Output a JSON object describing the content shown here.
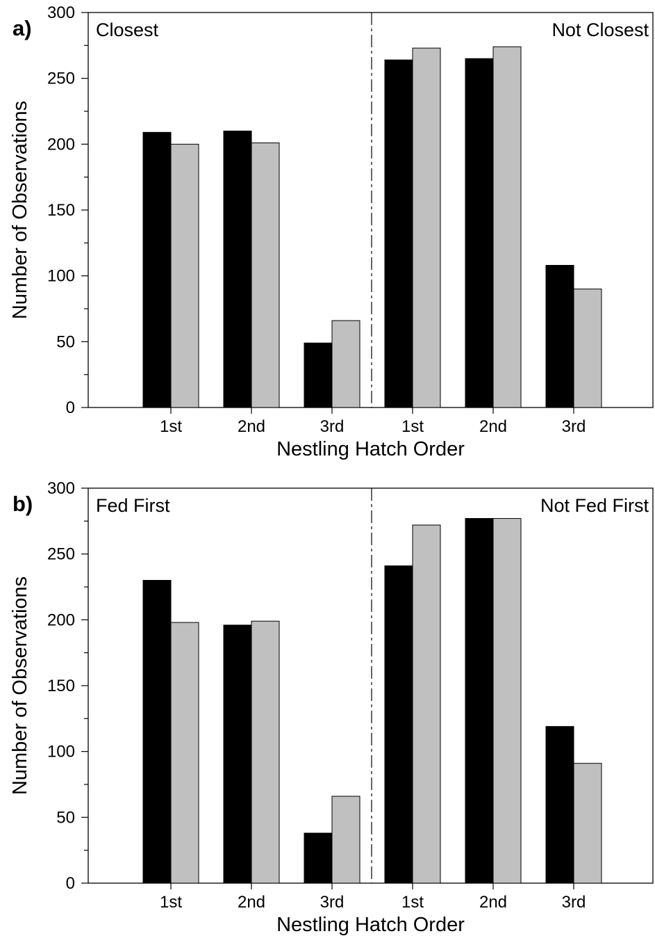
{
  "chart_data": [
    {
      "type": "bar",
      "panel_label": "a)",
      "xlabel": "Nestling Hatch Order",
      "ylabel": "Number of Observations",
      "ylim": [
        0,
        300
      ],
      "yticks": [
        0,
        50,
        100,
        150,
        200,
        250,
        300
      ],
      "categories": [
        "1st",
        "2nd",
        "3rd",
        "1st",
        "2nd",
        "3rd"
      ],
      "groups": [
        "Closest",
        "Not Closest"
      ],
      "series": [
        {
          "color": "#000000",
          "values": [
            209,
            210,
            49,
            264,
            265,
            108
          ]
        },
        {
          "color": "#c0c0c0",
          "values": [
            200,
            201,
            66,
            273,
            274,
            90
          ]
        }
      ],
      "grid": false
    },
    {
      "type": "bar",
      "panel_label": "b)",
      "xlabel": "Nestling Hatch Order",
      "ylabel": "Number of Observations",
      "ylim": [
        0,
        300
      ],
      "yticks": [
        0,
        50,
        100,
        150,
        200,
        250,
        300
      ],
      "categories": [
        "1st",
        "2nd",
        "3rd",
        "1st",
        "2nd",
        "3rd"
      ],
      "groups": [
        "Fed First",
        "Not Fed First"
      ],
      "series": [
        {
          "color": "#000000",
          "values": [
            230,
            196,
            38,
            241,
            277,
            119
          ]
        },
        {
          "color": "#c0c0c0",
          "values": [
            198,
            199,
            66,
            272,
            277,
            91
          ]
        }
      ],
      "grid": false
    }
  ]
}
